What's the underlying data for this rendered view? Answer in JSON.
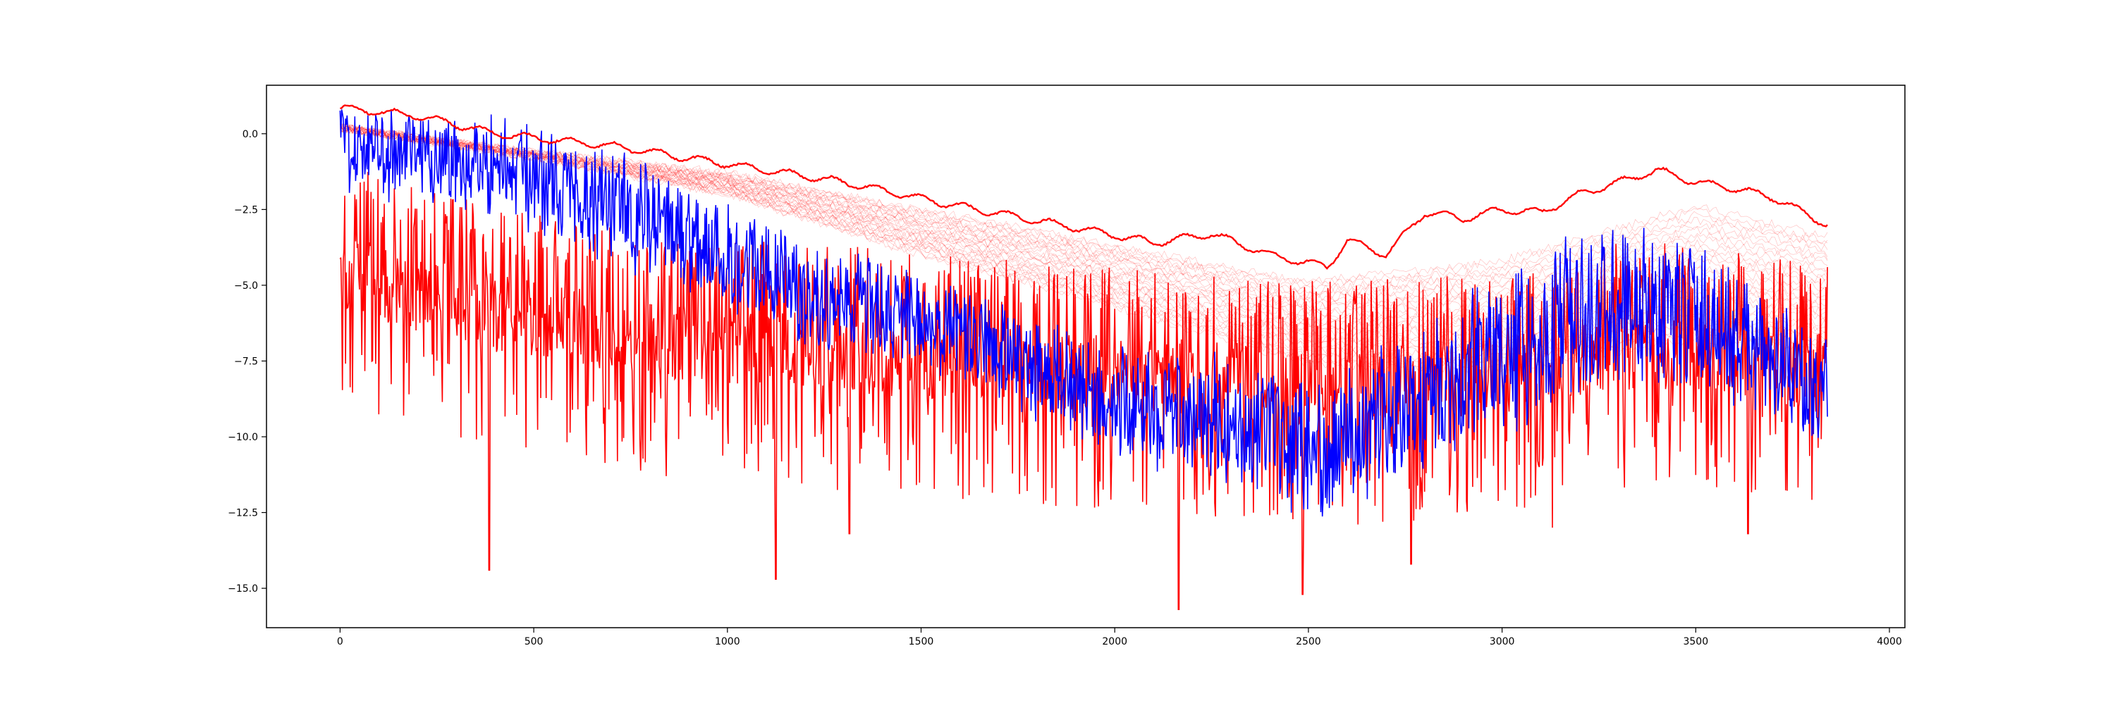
{
  "chart_data": {
    "type": "line",
    "title": "",
    "xlabel": "",
    "ylabel": "",
    "xlim": [
      -190,
      4040
    ],
    "ylim": [
      -16.3,
      1.6
    ],
    "x_ticks": [
      0,
      500,
      1000,
      1500,
      2000,
      2500,
      3000,
      3500,
      4000
    ],
    "x_tick_labels": [
      "0",
      "500",
      "1000",
      "1500",
      "2000",
      "2500",
      "3000",
      "3500",
      "4000"
    ],
    "y_ticks": [
      0.0,
      -2.5,
      -5.0,
      -7.5,
      -10.0,
      -12.5,
      -15.0
    ],
    "y_tick_labels": [
      "0.0",
      "−2.5",
      "−5.0",
      "−7.5",
      "−10.0",
      "−12.5",
      "−15.0"
    ],
    "grid": false,
    "legend": "none",
    "n_points": 3841,
    "x_range": [
      0,
      3840
    ],
    "colors": {
      "blue": "#0000ff",
      "red": "#ff0000",
      "faint": "#ff0000"
    },
    "series": [
      {
        "role": "red-envelope-upper",
        "color": "#ff0000",
        "values_approx": [
          [
            0,
            0.85
          ],
          [
            200,
            0.6
          ],
          [
            400,
            0.0
          ],
          [
            700,
            -0.4
          ],
          [
            1000,
            -1.0
          ],
          [
            1300,
            -1.6
          ],
          [
            1600,
            -2.4
          ],
          [
            1900,
            -3.1
          ],
          [
            2100,
            -3.6
          ],
          [
            2250,
            -3.3
          ],
          [
            2400,
            -4.0
          ],
          [
            2550,
            -4.4
          ],
          [
            2600,
            -3.5
          ],
          [
            2700,
            -4.0
          ],
          [
            2800,
            -2.6
          ],
          [
            2900,
            -2.8
          ],
          [
            3000,
            -2.5
          ],
          [
            3100,
            -2.6
          ],
          [
            3200,
            -2.0
          ],
          [
            3300,
            -1.6
          ],
          [
            3400,
            -1.2
          ],
          [
            3500,
            -1.6
          ],
          [
            3600,
            -1.8
          ],
          [
            3700,
            -2.1
          ],
          [
            3840,
            -3.0
          ]
        ]
      },
      {
        "role": "blue-noisy",
        "color": "#0000ff",
        "values_approx": [
          [
            0,
            -0.4
          ],
          [
            400,
            -1.0
          ],
          [
            800,
            -2.8
          ],
          [
            1200,
            -5.2
          ],
          [
            1600,
            -6.6
          ],
          [
            2000,
            -9.0
          ],
          [
            2300,
            -9.4
          ],
          [
            2500,
            -10.5
          ],
          [
            2700,
            -9.3
          ],
          [
            3000,
            -7.2
          ],
          [
            3300,
            -5.5
          ],
          [
            3500,
            -6.0
          ],
          [
            3840,
            -8.7
          ]
        ],
        "spread_approx": [
          [
            0,
            1.6
          ],
          [
            800,
            2.2
          ],
          [
            1600,
            1.8
          ],
          [
            2500,
            2.4
          ],
          [
            3300,
            3.2
          ],
          [
            3840,
            2.0
          ]
        ]
      },
      {
        "role": "red-noisy",
        "color": "#ff0000",
        "values_approx": [
          [
            0,
            -4.8
          ],
          [
            400,
            -6.2
          ],
          [
            800,
            -7.0
          ],
          [
            1200,
            -7.4
          ],
          [
            1600,
            -7.8
          ],
          [
            2000,
            -8.2
          ],
          [
            2300,
            -8.4
          ],
          [
            2500,
            -8.6
          ],
          [
            2700,
            -8.6
          ],
          [
            3000,
            -8.2
          ],
          [
            3300,
            -7.4
          ],
          [
            3500,
            -7.4
          ],
          [
            3840,
            -8.2
          ]
        ],
        "deep_minima": [
          [
            385,
            -14.4
          ],
          [
            1125,
            -14.7
          ],
          [
            2165,
            -15.7
          ],
          [
            2485,
            -15.2
          ],
          [
            2765,
            -14.2
          ],
          [
            1315,
            -13.2
          ],
          [
            3635,
            -13.2
          ],
          [
            3130,
            -13.0
          ]
        ]
      },
      {
        "role": "faint-red-bundle",
        "color": "#ff0000",
        "count": 30,
        "values_approx_upper": [
          [
            0,
            0.2
          ],
          [
            500,
            -0.6
          ],
          [
            1000,
            -1.3
          ],
          [
            1500,
            -2.5
          ],
          [
            2000,
            -3.7
          ],
          [
            2500,
            -4.9
          ],
          [
            3000,
            -4.2
          ],
          [
            3500,
            -2.4
          ],
          [
            3840,
            -3.4
          ]
        ],
        "values_approx_lower": [
          [
            0,
            0.2
          ],
          [
            500,
            -0.8
          ],
          [
            1000,
            -2.0
          ],
          [
            1500,
            -4.0
          ],
          [
            2000,
            -5.7
          ],
          [
            2500,
            -7.6
          ],
          [
            3000,
            -7.8
          ],
          [
            3500,
            -6.8
          ],
          [
            3840,
            -7.2
          ]
        ]
      }
    ]
  }
}
